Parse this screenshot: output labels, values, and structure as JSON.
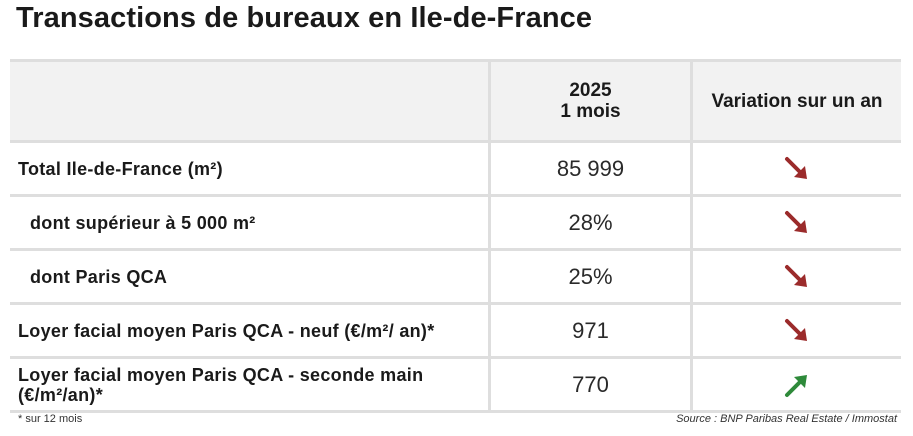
{
  "title": "Transactions de bureaux en Ile-de-France",
  "table": {
    "header": {
      "col1": "",
      "col2_line1": "2025",
      "col2_line2": "1 mois",
      "col3": "Variation sur un an"
    },
    "rows": [
      {
        "label": "Total Ile-de-France (m²)",
        "value": "85 999",
        "trend": "down",
        "trend_icon": "arrow-down-right-icon"
      },
      {
        "label": "dont supérieur à 5 000 m²",
        "value": "28%",
        "trend": "down",
        "trend_icon": "arrow-down-right-icon"
      },
      {
        "label": "dont Paris QCA",
        "value": "25%",
        "trend": "down",
        "trend_icon": "arrow-down-right-icon"
      },
      {
        "label": "Loyer facial moyen Paris QCA - neuf (€/m²/ an)*",
        "value": "971",
        "trend": "down",
        "trend_icon": "arrow-down-right-icon"
      },
      {
        "label": "Loyer facial moyen Paris QCA - seconde main (€/m²/an)*",
        "value": "770",
        "trend": "up",
        "trend_icon": "arrow-up-right-icon"
      }
    ]
  },
  "colors": {
    "down": "#9b2b2b",
    "up": "#2e8a3a",
    "border": "#dedede",
    "header_bg": "#f2f2f2"
  },
  "footnote": "* sur 12 mois",
  "source": "Source : BNP Paribas Real Estate / Immostat"
}
